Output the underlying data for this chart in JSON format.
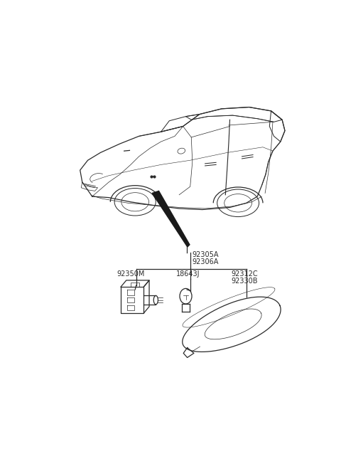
{
  "bg_color": "#ffffff",
  "line_color": "#2a2a2a",
  "text_color": "#2a2a2a",
  "fig_width": 4.8,
  "fig_height": 6.45,
  "dpi": 100,
  "font_size": 7.0,
  "lw_main": 0.9,
  "lw_thin": 0.5,
  "lw_thick": 1.3,
  "label_92305A": "92305A",
  "label_92306A": "92306A",
  "label_92350M": "92350M",
  "label_18643J": "18643J",
  "label_92312C": "92312C",
  "label_92330B": "92330B"
}
